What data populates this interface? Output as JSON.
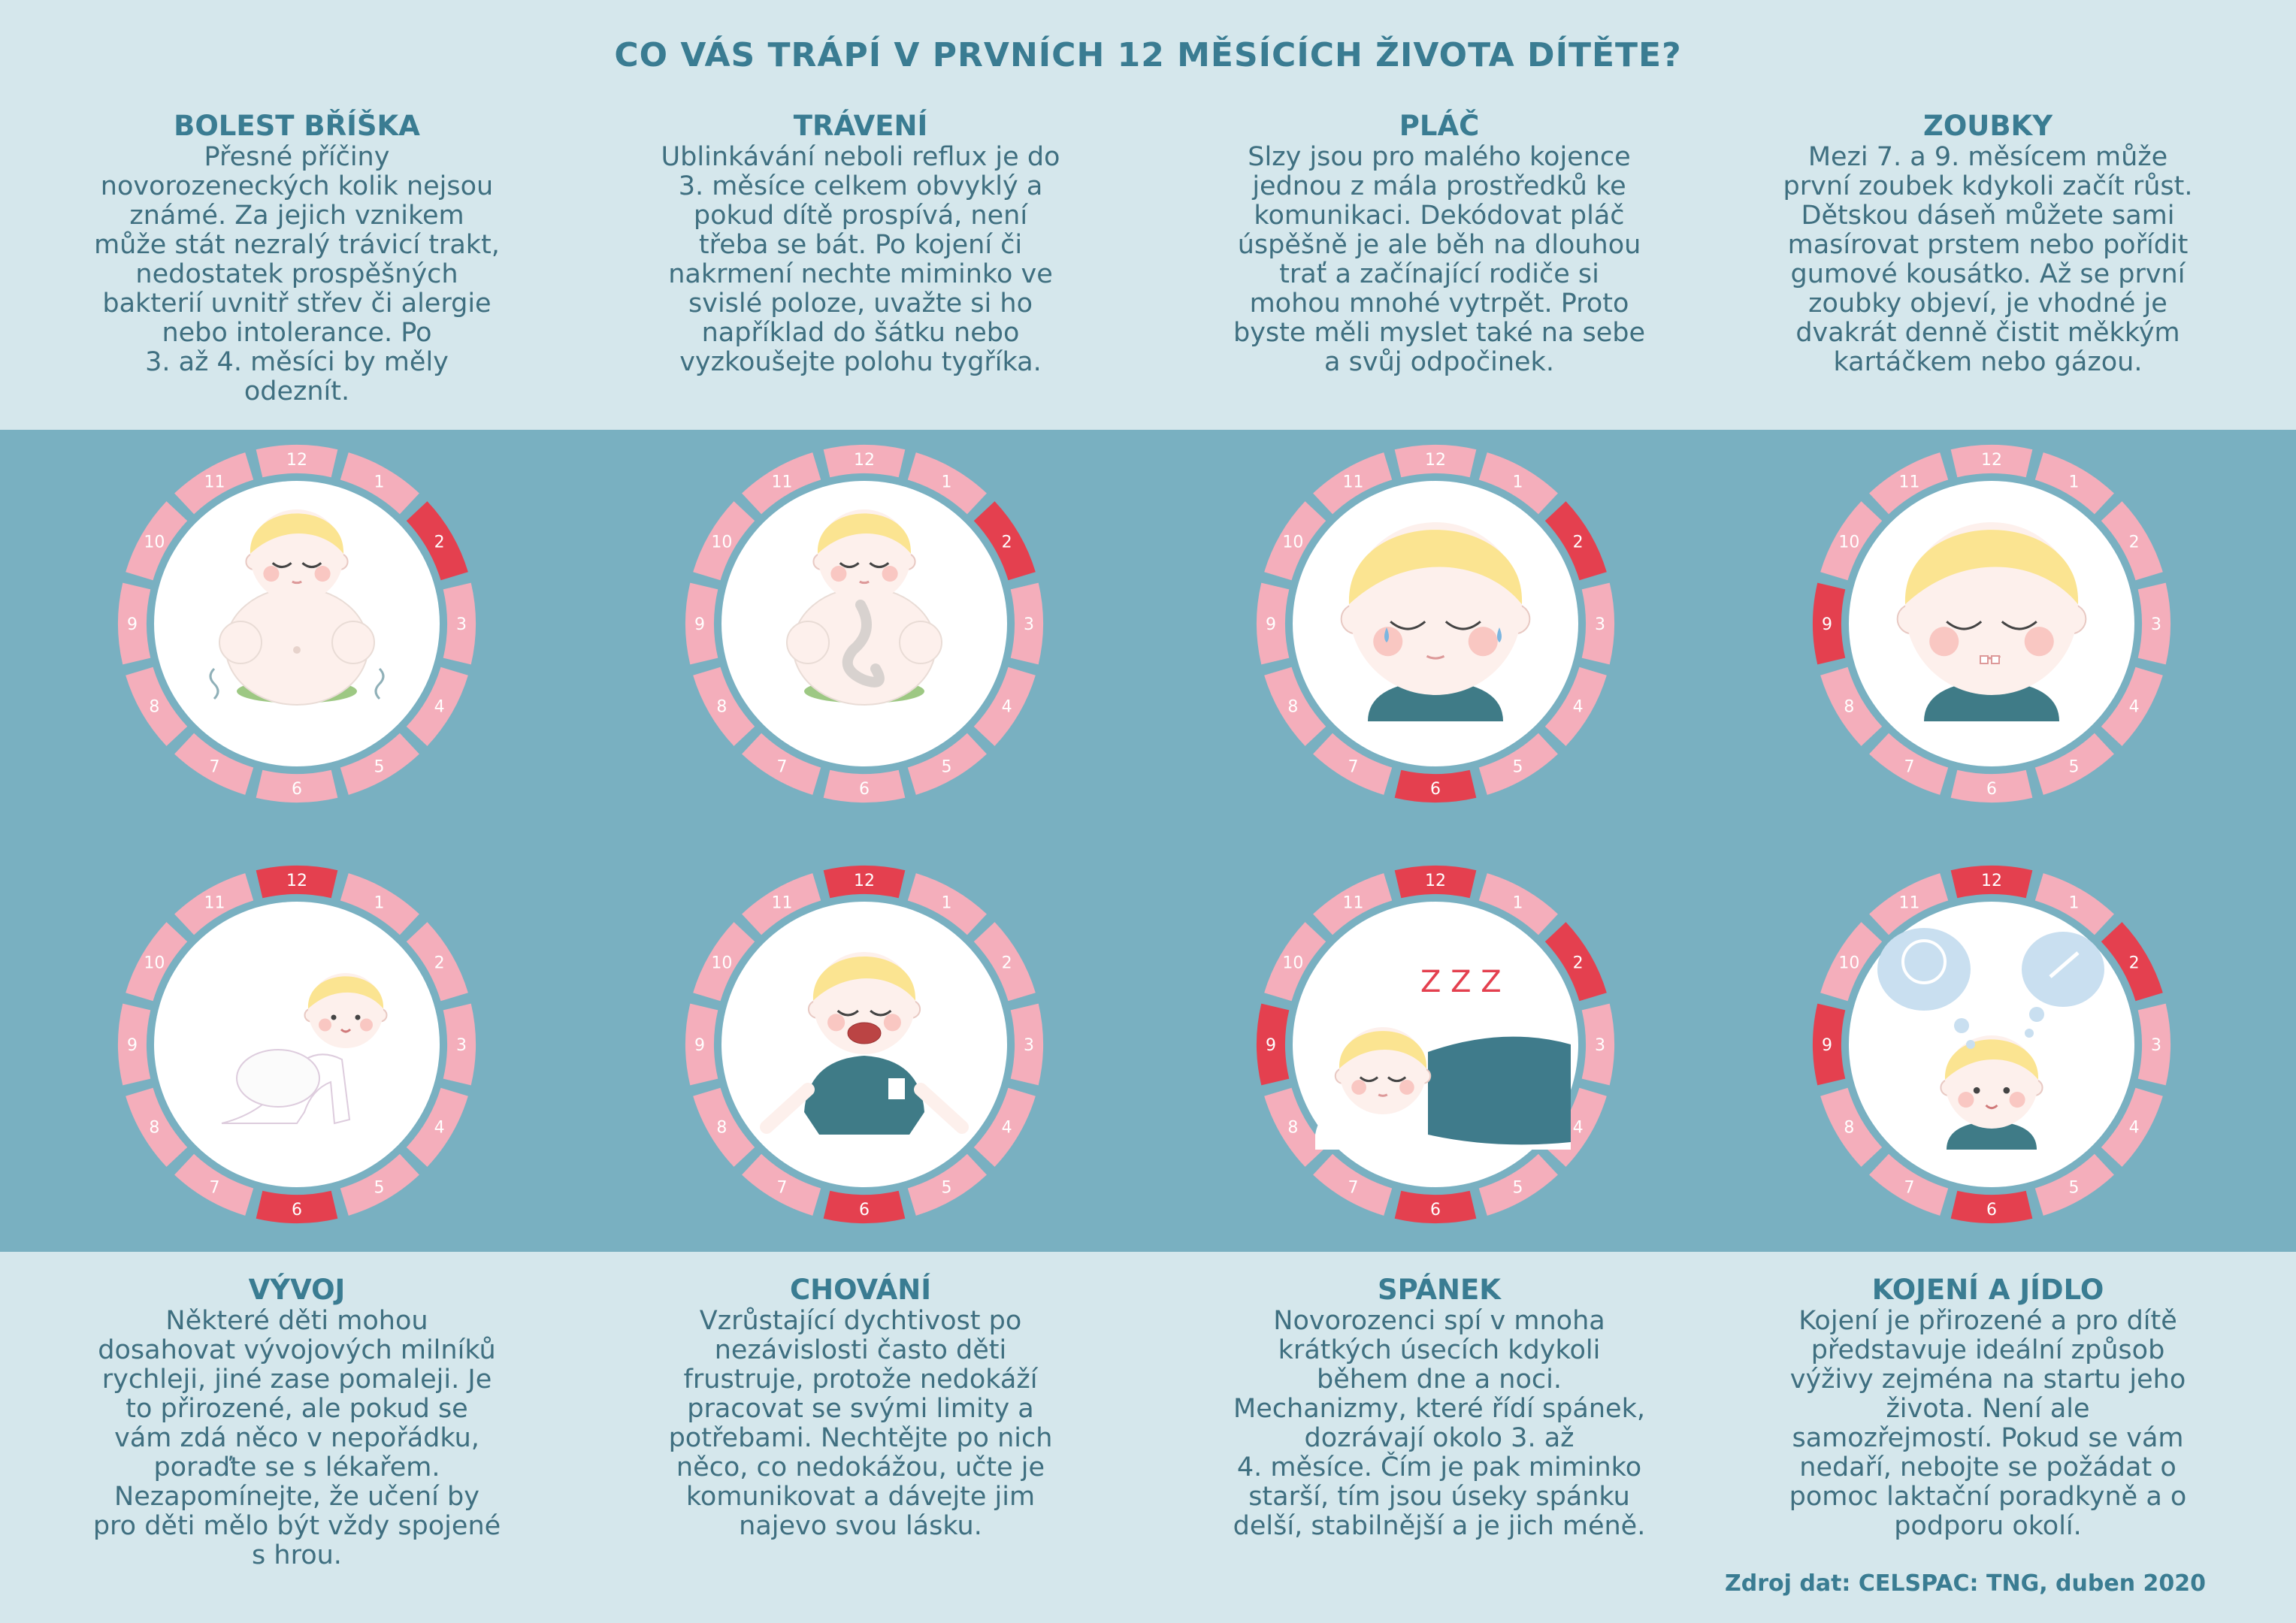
{
  "title": "CO VÁS TRÁPÍ V PRVNÍCH 12 MĚSÍCÍCH ŽIVOTA DÍTĚTE?",
  "colors": {
    "segment_default": "#f4aebb",
    "segment_highlight": "#e4404f",
    "inner": "#ffffff",
    "band": "#79b0c1",
    "background": "#d5e7ec",
    "hair": "#fbe491",
    "skin": "#fdf0ec",
    "shirt": "#3f7b87",
    "diaper": "#9dc883"
  },
  "topics": [
    {
      "id": "bolest-bricha",
      "title": "BOLEST BŘÍŠKA",
      "lines": [
        "Přesné příčiny",
        "novorozeneckých kolik nejsou",
        "známé. Za jejich vznikem",
        "může stát nezralý trávicí trakt,",
        "nedostatek prospěšných",
        "bakterií uvnitř střev či alergie",
        "nebo intolerance. Po",
        "3. až 4. měsíci by měly",
        "odeznít."
      ],
      "highlighted_months": [
        2
      ],
      "illustration": "baby-belly-icon"
    },
    {
      "id": "traveni",
      "title": "TRÁVENÍ",
      "lines": [
        "Ublinkávání neboli reflux je do",
        "3. měsíce celkem obvyklý a",
        "pokud dítě prospívá, není",
        "třeba se bát. Po kojení či",
        "nakrmení nechte miminko ve",
        "svislé poloze, uvažte si ho",
        "například do šátku nebo",
        "vyzkoušejte polohu tygříka."
      ],
      "highlighted_months": [
        2
      ],
      "illustration": "baby-digestion-icon"
    },
    {
      "id": "plac",
      "title": "PLÁČ",
      "lines": [
        "Slzy jsou pro malého kojence",
        "jednou z mála prostředků ke",
        "komunikaci. Dekódovat pláč",
        "úspěšně je ale běh na dlouhou",
        "trať a začínající rodiče si",
        "mohou mnohé vytrpět. Proto",
        "byste měli myslet také na sebe",
        "a svůj odpočinek."
      ],
      "highlighted_months": [
        2,
        6
      ],
      "illustration": "baby-crying-face-icon"
    },
    {
      "id": "zoubky",
      "title": "ZOUBKY",
      "lines": [
        "Mezi 7. a 9. měsícem může",
        "první zoubek kdykoli začít růst.",
        "Dětskou dáseň můžete sami",
        "masírovat prstem nebo pořídit",
        "gumové kousátko. Až se první",
        "zoubky objeví, je vhodné je",
        "dvakrát denně čistit měkkým",
        "kartáčkem nebo gázou."
      ],
      "highlighted_months": [
        9
      ],
      "illustration": "baby-teething-face-icon"
    },
    {
      "id": "vyvoj",
      "title": "VÝVOJ",
      "lines": [
        "Některé děti mohou",
        "dosahovat vývojových milníků",
        "rychleji, jiné zase pomaleji. Je",
        "to přirozené, ale pokud se",
        "vám zdá něco v nepořádku,",
        "poraďte se s lékařem.",
        "Nezapomínejte, že učení by",
        "pro děti mělo být vždy spojené",
        "s hrou."
      ],
      "highlighted_months": [
        6,
        12
      ],
      "illustration": "baby-crawling-icon"
    },
    {
      "id": "chovani",
      "title": "CHOVÁNÍ",
      "lines": [
        "Vzrůstající dychtivost po",
        "nezávislosti často děti",
        "frustruje, protože nedokáží",
        "pracovat se svými limity a",
        "potřebami. Nechtějte po nich",
        "něco, co nedokážou, učte je",
        "komunikovat a dávejte jim",
        "najevo svou lásku."
      ],
      "highlighted_months": [
        6,
        12
      ],
      "illustration": "baby-tantrum-icon"
    },
    {
      "id": "spanek",
      "title": "SPÁNEK",
      "lines": [
        "Novorozenci spí v mnoha",
        "krátkých úsecích kdykoli",
        "během dne a noci.",
        "Mechanizmy, které řídí spánek,",
        "dozrávají okolo 3. až",
        "4. měsíce. Čím je pak miminko",
        "starší, tím jsou úseky spánku",
        "delší, stabilnější a je jich méně."
      ],
      "highlighted_months": [
        2,
        6,
        9,
        12
      ],
      "illustration": "baby-sleeping-icon",
      "zzz": "Z Z Z"
    },
    {
      "id": "kojeni",
      "title": "KOJENÍ A JÍDLO",
      "lines": [
        "Kojení je přirozené a pro dítě",
        "představuje ideální způsob",
        "výživy zejména na startu jeho",
        "života. Není ale",
        "samozřejmostí. Pokud se vám",
        "nedaří, nebojte se požádat o",
        "pomoc laktační poradkyně a o",
        "podporu okolí."
      ],
      "highlighted_months": [
        2,
        6,
        9,
        12
      ],
      "illustration": "baby-feeding-thought-icon"
    }
  ],
  "months": [
    "1",
    "2",
    "3",
    "4",
    "5",
    "6",
    "7",
    "8",
    "9",
    "10",
    "11",
    "12"
  ],
  "source": "Zdroj dat: CELSPAC: TNG, duben 2020"
}
